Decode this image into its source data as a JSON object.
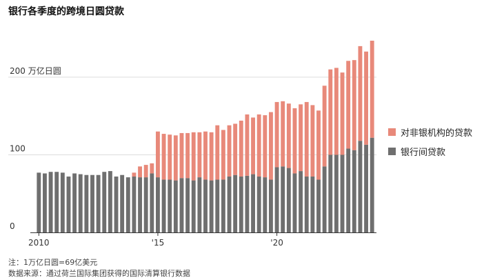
{
  "title": "银行各季度的跨境日圆贷款",
  "colors": {
    "nonbank": "#e8897a",
    "interbank": "#6f6f6f",
    "grid": "#dddddd",
    "axis": "#333333"
  },
  "chart_data": {
    "type": "bar",
    "stacked": true,
    "title": "银行各季度的跨境日圆贷款",
    "ylabel": "",
    "y_unit_label": "200 万亿日圆",
    "ylim": [
      0,
      255
    ],
    "yticks": [
      0,
      100,
      200
    ],
    "ytick_labels": [
      "0",
      "100",
      "200 万亿日圆"
    ],
    "x_start": "2010-Q1",
    "xticks": [
      {
        "index": 0,
        "label": "2010"
      },
      {
        "index": 20,
        "label": "'15"
      },
      {
        "index": 40,
        "label": "'20"
      }
    ],
    "legend_position": "right",
    "series": [
      {
        "name": "银行间贷款",
        "key": "interbank",
        "values": [
          77,
          76,
          78,
          78,
          77,
          72,
          76,
          75,
          74,
          74,
          74,
          78,
          79,
          72,
          74,
          71,
          72,
          71,
          71,
          76,
          71,
          68,
          68,
          67,
          70,
          70,
          67,
          71,
          68,
          67,
          68,
          68,
          72,
          74,
          72,
          73,
          75,
          72,
          71,
          68,
          84,
          85,
          83,
          76,
          79,
          72,
          72,
          68,
          85,
          100,
          100,
          100,
          108,
          106,
          118,
          113,
          122
        ]
      },
      {
        "name": "对非银机构的贷款",
        "key": "nonbank",
        "values": [
          0,
          0,
          0,
          0,
          0,
          0,
          0,
          0,
          0,
          0,
          0,
          0,
          0,
          0,
          0,
          0,
          5,
          14,
          16,
          13,
          59,
          59,
          58,
          58,
          58,
          58,
          62,
          58,
          62,
          62,
          70,
          64,
          66,
          66,
          72,
          79,
          73,
          80,
          80,
          87,
          84,
          84,
          83,
          84,
          86,
          96,
          92,
          89,
          104,
          110,
          112,
          106,
          113,
          116,
          122,
          120,
          125
        ]
      }
    ]
  },
  "legend": {
    "items": [
      {
        "label": "对非银机构的贷款",
        "color": "#e8897a"
      },
      {
        "label": "银行间贷款",
        "color": "#6f6f6f"
      }
    ]
  },
  "footnotes": {
    "note": "注：1万亿日圆=69亿美元",
    "source": "数据来源：通过荷兰国际集团获得的国际清算银行数据"
  }
}
